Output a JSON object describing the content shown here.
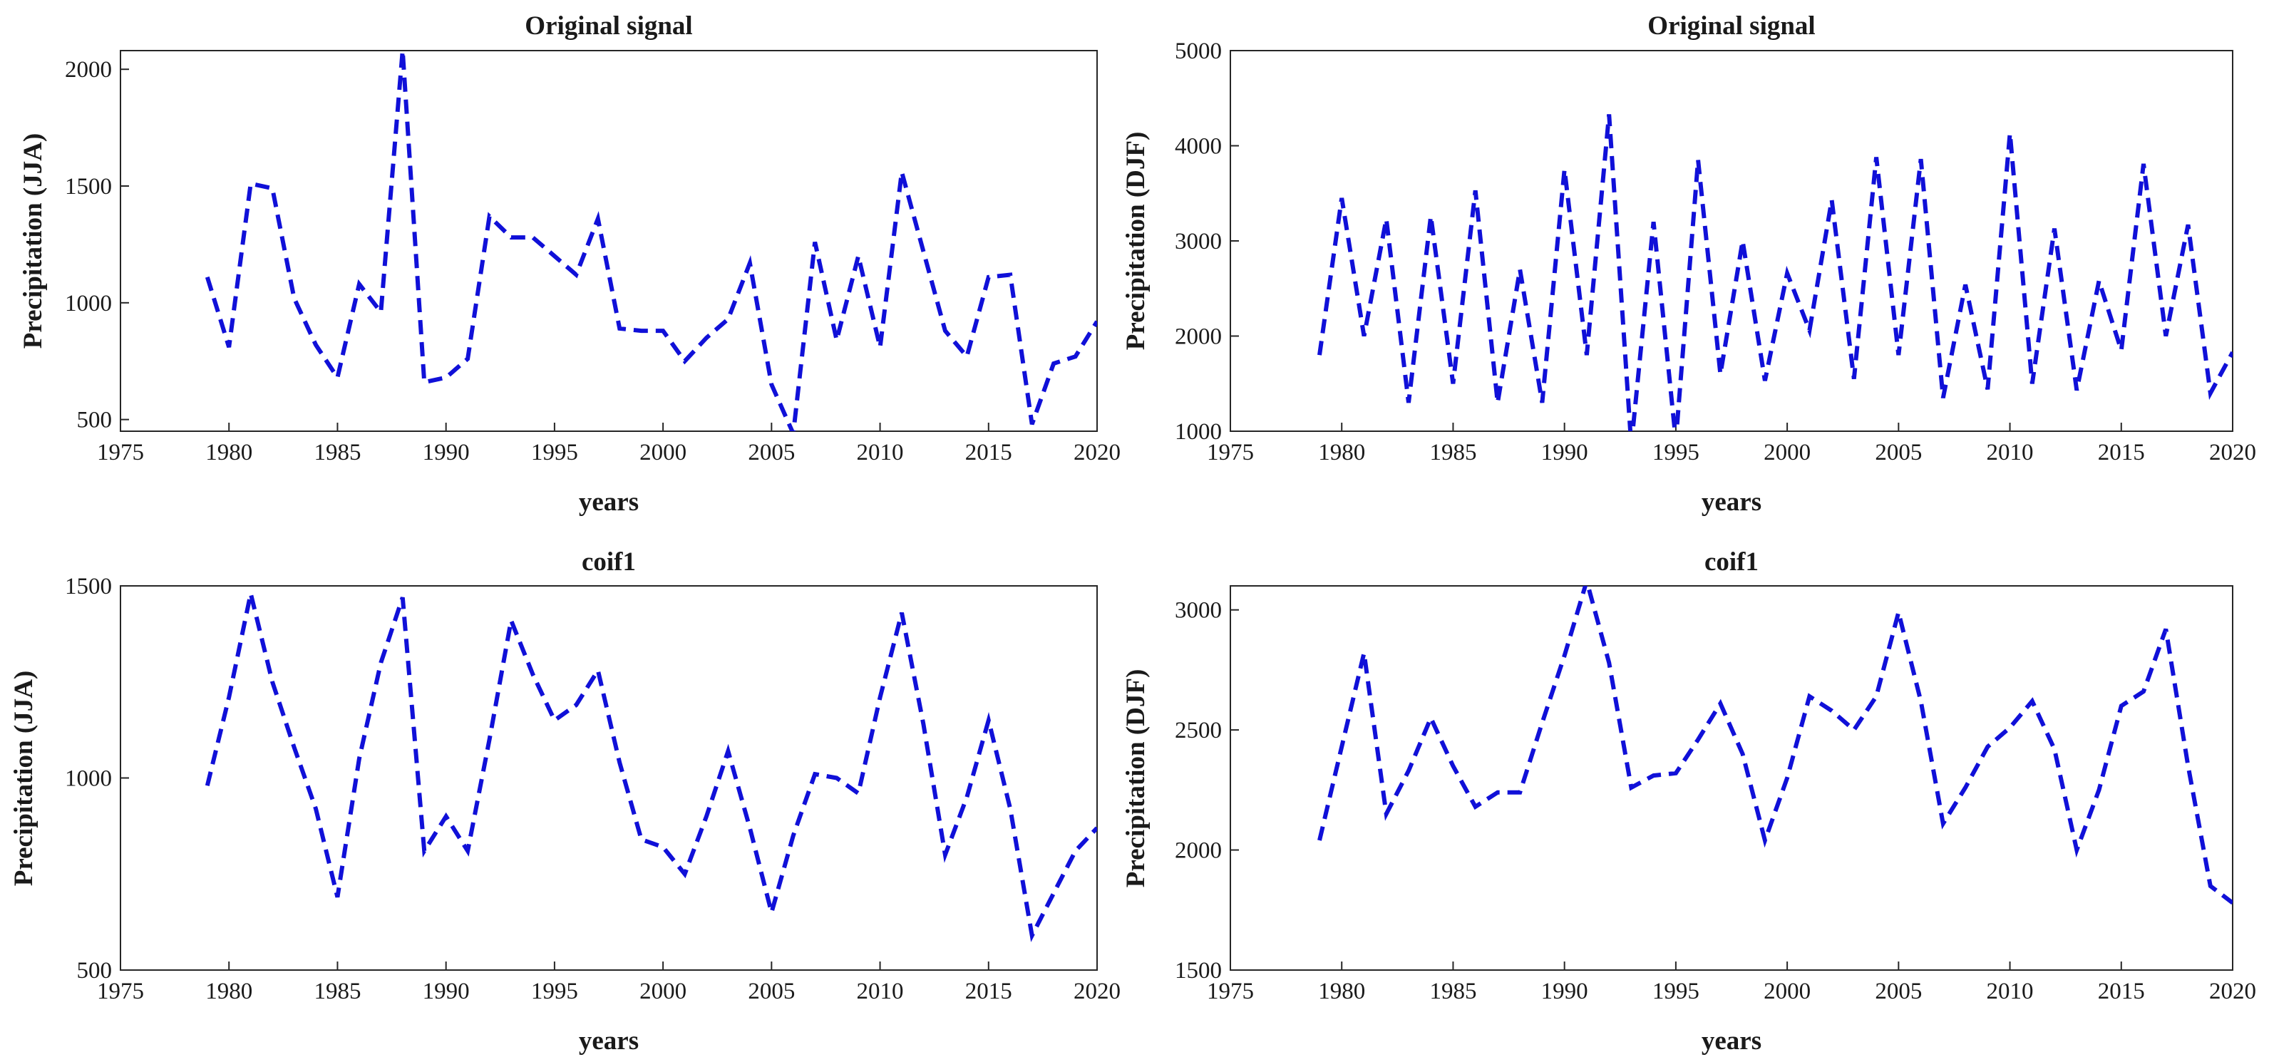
{
  "chart_data": [
    {
      "type": "line",
      "title": "Original signal",
      "xlabel": "years",
      "ylabel": "Precipitation (JJA)",
      "xlim": [
        1975,
        2020
      ],
      "ylim": [
        450,
        2080
      ],
      "xticks": [
        1975,
        1980,
        1985,
        1990,
        1995,
        2000,
        2005,
        2010,
        2015,
        2020
      ],
      "yticks": [
        500,
        1000,
        1500,
        2000
      ],
      "grid": false,
      "series": [
        {
          "name": "Original signal",
          "color": "#1010d8",
          "x": [
            1979,
            1980,
            1981,
            1982,
            1983,
            1984,
            1985,
            1986,
            1987,
            1988,
            1989,
            1990,
            1991,
            1992,
            1993,
            1994,
            1995,
            1996,
            1997,
            1998,
            1999,
            2000,
            2001,
            2002,
            2003,
            2004,
            2005,
            2006,
            2007,
            2008,
            2009,
            2010,
            2011,
            2012,
            2013,
            2014,
            2015,
            2016,
            2017,
            2018,
            2019,
            2020
          ],
          "y": [
            1110,
            810,
            1510,
            1490,
            1020,
            820,
            680,
            1080,
            960,
            2080,
            660,
            680,
            760,
            1370,
            1280,
            1280,
            1200,
            1120,
            1360,
            890,
            880,
            880,
            750,
            850,
            930,
            1170,
            650,
            440,
            1260,
            840,
            1200,
            810,
            1560,
            1220,
            880,
            770,
            1110,
            1120,
            480,
            740,
            770,
            920
          ]
        }
      ]
    },
    {
      "type": "line",
      "title": "Original signal",
      "xlabel": "years",
      "ylabel": "Precipitation (DJF)",
      "xlim": [
        1975,
        2020
      ],
      "ylim": [
        1000,
        5000
      ],
      "xticks": [
        1975,
        1980,
        1985,
        1990,
        1995,
        2000,
        2005,
        2010,
        2015,
        2020
      ],
      "yticks": [
        1000,
        2000,
        3000,
        4000,
        5000
      ],
      "grid": false,
      "series": [
        {
          "name": "Original signal",
          "color": "#1010d8",
          "x": [
            1979,
            1980,
            1981,
            1982,
            1983,
            1984,
            1985,
            1986,
            1987,
            1988,
            1989,
            1990,
            1991,
            1992,
            1993,
            1994,
            1995,
            1996,
            1997,
            1998,
            1999,
            2000,
            2001,
            2002,
            2003,
            2004,
            2005,
            2006,
            2007,
            2008,
            2009,
            2010,
            2011,
            2012,
            2013,
            2014,
            2015,
            2016,
            2017,
            2018,
            2019,
            2020
          ],
          "y": [
            1800,
            3450,
            2000,
            3230,
            1300,
            3260,
            1500,
            3530,
            1300,
            2700,
            1300,
            3750,
            1800,
            4330,
            850,
            3200,
            900,
            3850,
            1600,
            3000,
            1530,
            2660,
            2060,
            3430,
            1550,
            3880,
            1800,
            3860,
            1350,
            2540,
            1440,
            4130,
            1500,
            3130,
            1430,
            2580,
            1850,
            3810,
            2000,
            3170,
            1400,
            1830
          ]
        }
      ]
    },
    {
      "type": "line",
      "title": "coif1",
      "xlabel": "years",
      "ylabel": "Precipitation (JJA)",
      "xlim": [
        1975,
        2020
      ],
      "ylim": [
        500,
        1500
      ],
      "xticks": [
        1975,
        1980,
        1985,
        1990,
        1995,
        2000,
        2005,
        2010,
        2015,
        2020
      ],
      "yticks": [
        500,
        1000,
        1500
      ],
      "grid": false,
      "series": [
        {
          "name": "coif1",
          "color": "#1010d8",
          "x": [
            1979,
            1980,
            1981,
            1982,
            1983,
            1984,
            1985,
            1986,
            1987,
            1988,
            1989,
            1990,
            1991,
            1992,
            1993,
            1994,
            1995,
            1996,
            1997,
            1998,
            1999,
            2000,
            2001,
            2002,
            2003,
            2004,
            2005,
            2006,
            2007,
            2008,
            2009,
            2010,
            2011,
            2012,
            2013,
            2014,
            2015,
            2016,
            2017,
            2018,
            2019,
            2020
          ],
          "y": [
            980,
            1210,
            1480,
            1250,
            1080,
            920,
            690,
            1050,
            1300,
            1470,
            810,
            900,
            810,
            1100,
            1410,
            1270,
            1150,
            1190,
            1280,
            1040,
            840,
            820,
            750,
            900,
            1070,
            870,
            650,
            850,
            1010,
            1000,
            960,
            1210,
            1430,
            1140,
            800,
            950,
            1150,
            920,
            590,
            700,
            810,
            870
          ]
        }
      ]
    },
    {
      "type": "line",
      "title": "coif1",
      "xlabel": "years",
      "ylabel": "Precipitation (DJF)",
      "xlim": [
        1975,
        2020
      ],
      "ylim": [
        1500,
        3100
      ],
      "xticks": [
        1975,
        1980,
        1985,
        1990,
        1995,
        2000,
        2005,
        2010,
        2015,
        2020
      ],
      "yticks": [
        1500,
        2000,
        2500,
        3000
      ],
      "grid": false,
      "series": [
        {
          "name": "coif1",
          "color": "#1010d8",
          "x": [
            1979,
            1980,
            1981,
            1982,
            1983,
            1984,
            1985,
            1986,
            1987,
            1988,
            1989,
            1990,
            1991,
            1992,
            1993,
            1994,
            1995,
            1996,
            1997,
            1998,
            1999,
            2000,
            2001,
            2002,
            2003,
            2004,
            2005,
            2006,
            2007,
            2008,
            2009,
            2010,
            2011,
            2012,
            2013,
            2014,
            2015,
            2016,
            2017,
            2018,
            2019,
            2020
          ],
          "y": [
            2040,
            2430,
            2820,
            2150,
            2330,
            2550,
            2350,
            2180,
            2240,
            2240,
            2530,
            2810,
            3120,
            2780,
            2260,
            2310,
            2320,
            2460,
            2610,
            2400,
            2040,
            2300,
            2640,
            2580,
            2500,
            2640,
            2990,
            2620,
            2110,
            2260,
            2430,
            2510,
            2620,
            2420,
            2000,
            2250,
            2600,
            2660,
            2920,
            2350,
            1850,
            1780
          ]
        }
      ]
    }
  ]
}
